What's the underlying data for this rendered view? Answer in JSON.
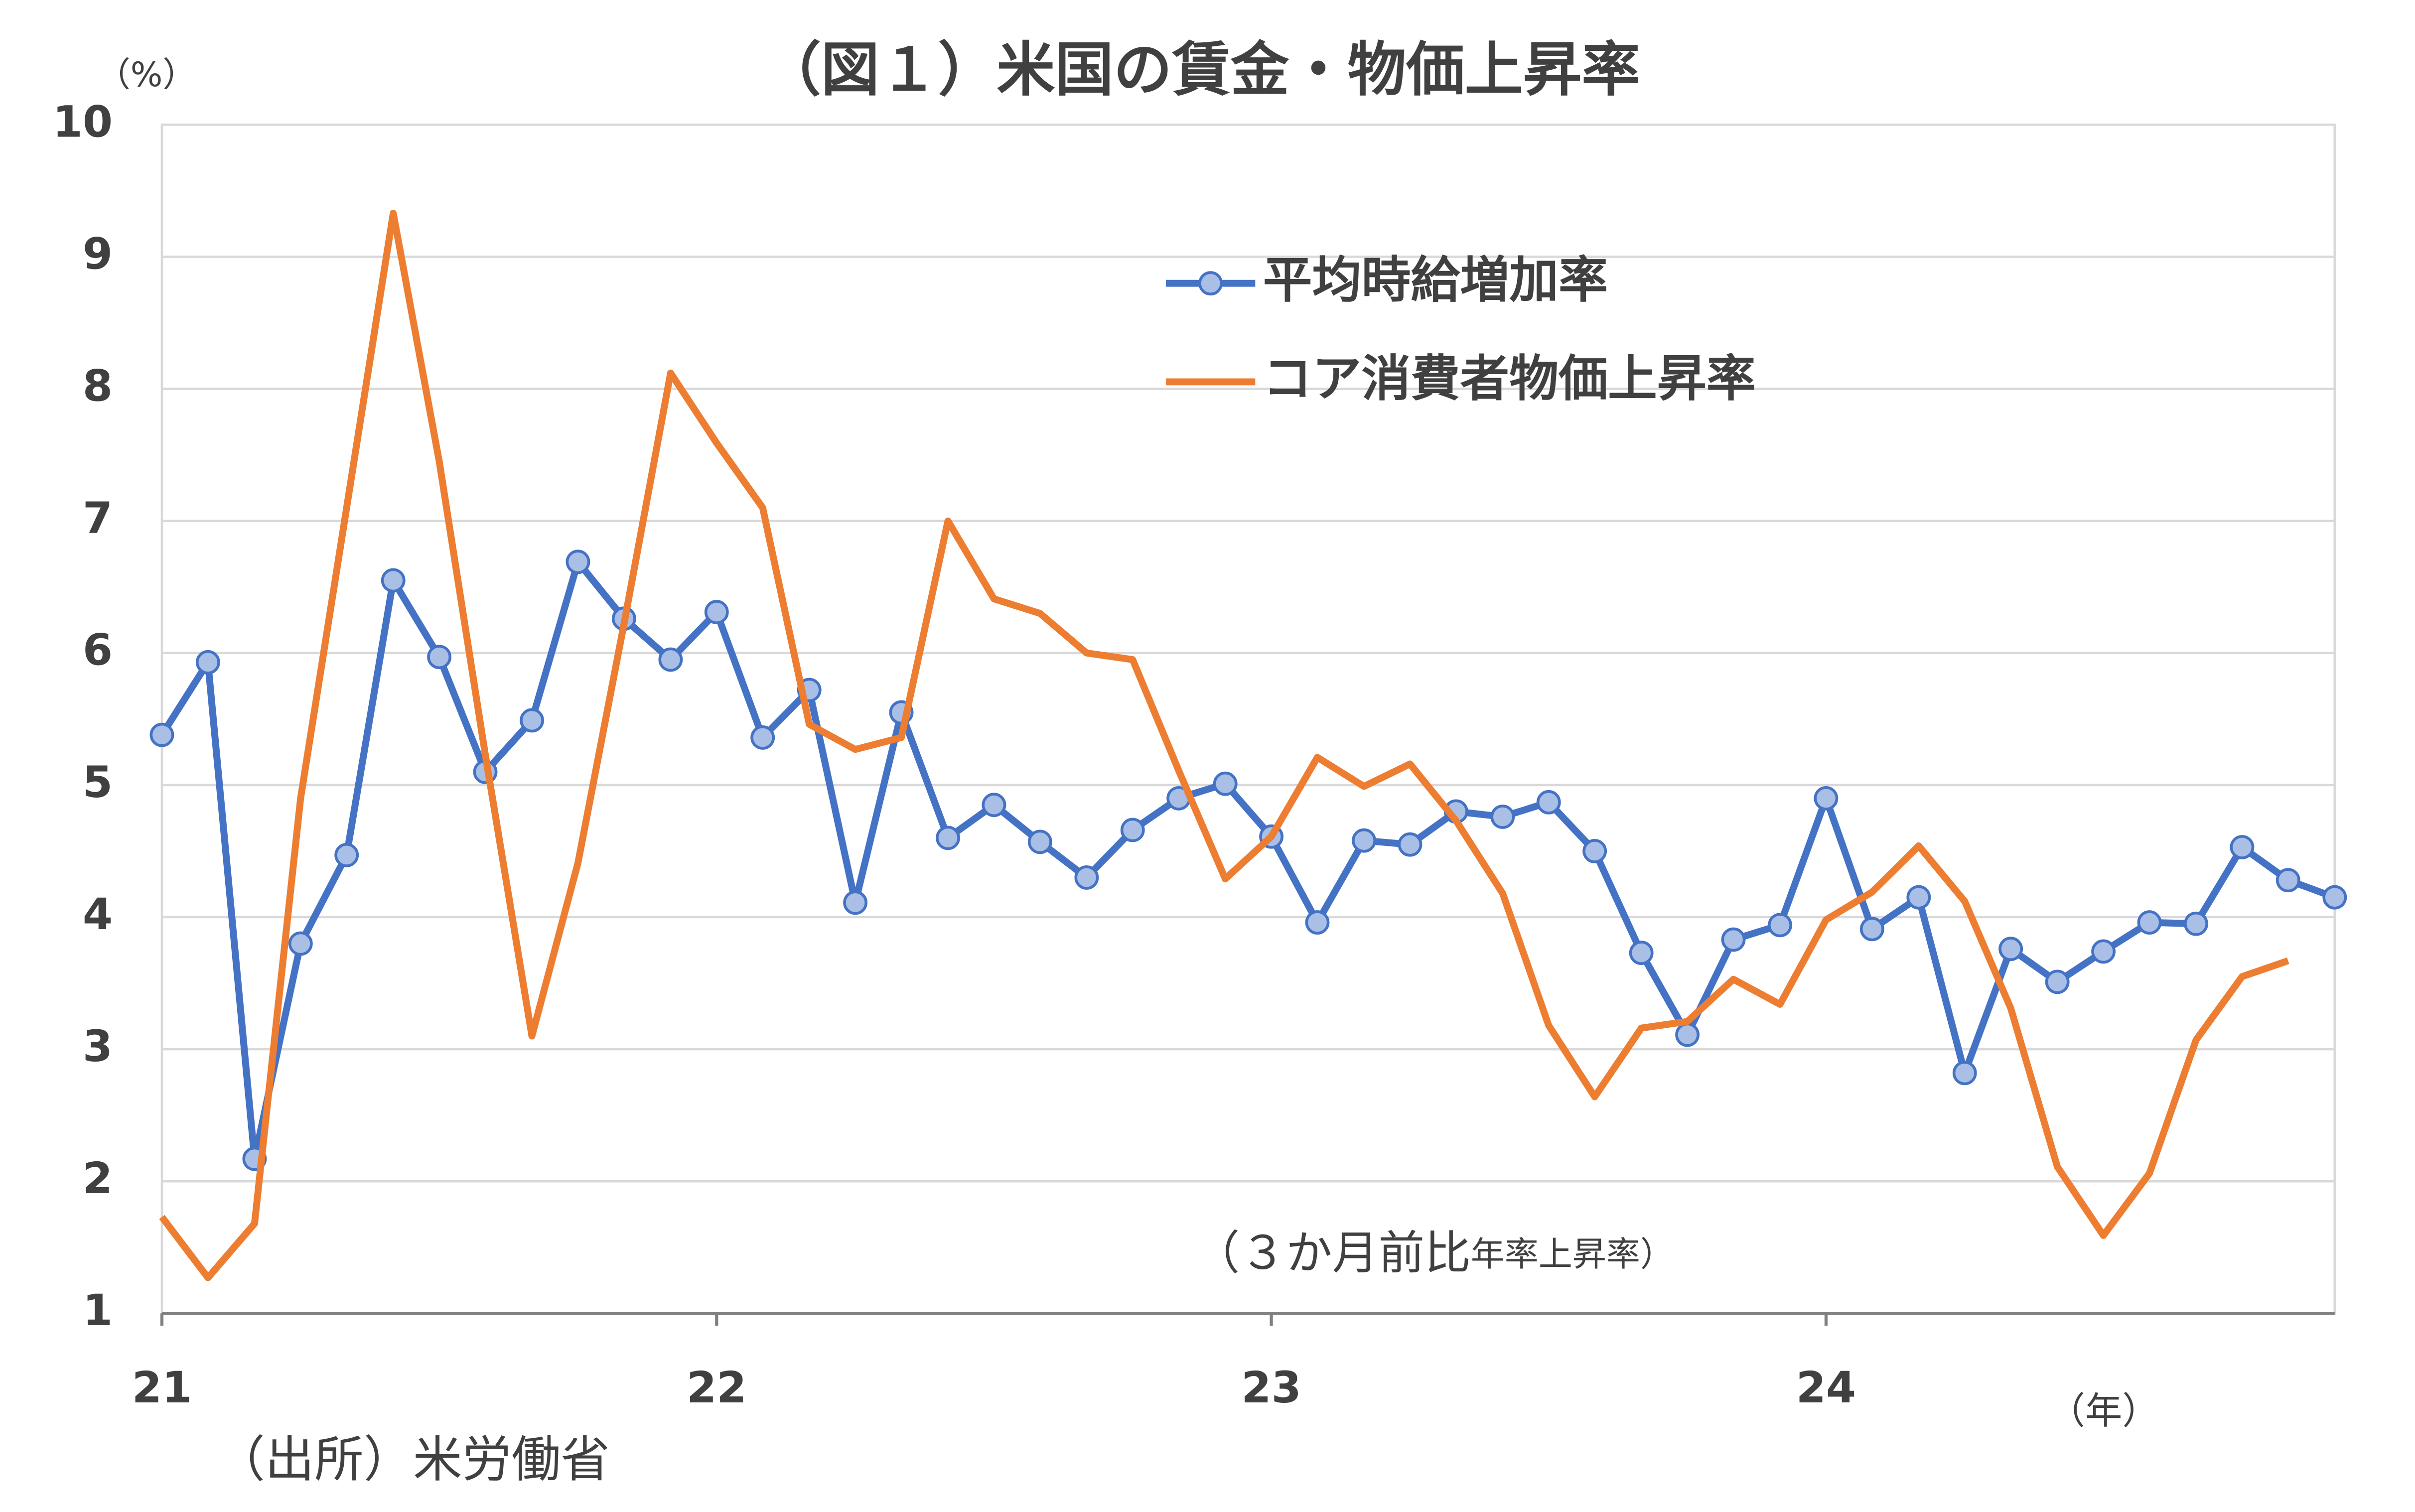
{
  "chart_data": {
    "type": "line",
    "title": "（図１）米国の賃金・物価上昇率",
    "y_unit": "（%）",
    "x_unit": "（年）",
    "annotation": [
      "（３か月前比",
      "年率上昇率）"
    ],
    "source": "（出所）米労働省",
    "x": [
      21,
      21.083,
      21.167,
      21.25,
      21.333,
      21.417,
      21.5,
      21.583,
      21.667,
      21.75,
      21.833,
      21.917,
      22,
      22.083,
      22.167,
      22.25,
      22.333,
      22.417,
      22.5,
      22.583,
      22.667,
      22.75,
      22.833,
      22.917,
      23,
      23.083,
      23.167,
      23.25,
      23.333,
      23.417,
      23.5,
      23.583,
      23.667,
      23.75,
      23.833,
      23.917,
      24,
      24.083,
      24.167,
      24.25,
      24.333,
      24.417,
      24.5,
      24.583,
      24.667,
      24.75,
      24.833,
      24.917
    ],
    "xlim": [
      21,
      24.917
    ],
    "xticks": [
      21,
      22,
      23,
      24
    ],
    "ylim": [
      1,
      10
    ],
    "yticks": [
      1,
      2,
      3,
      4,
      5,
      6,
      7,
      8,
      9,
      10
    ],
    "grid": true,
    "series": [
      {
        "name": "平均時給増加率",
        "color": "#4472c4",
        "marker_fill": "#a9bfe6",
        "markers": true,
        "values": [
          5.38,
          5.93,
          2.17,
          3.8,
          4.47,
          6.55,
          5.97,
          5.1,
          5.49,
          6.69,
          6.26,
          5.95,
          6.31,
          5.36,
          5.72,
          4.11,
          5.55,
          4.6,
          4.85,
          4.57,
          4.3,
          4.66,
          4.9,
          5.01,
          4.61,
          3.96,
          4.58,
          4.55,
          4.8,
          4.76,
          4.87,
          4.5,
          3.73,
          3.11,
          3.83,
          3.94,
          4.9,
          3.91,
          4.15,
          2.82,
          3.76,
          3.51,
          3.74,
          3.96,
          3.95,
          4.53,
          4.28,
          4.15
        ]
      },
      {
        "name": "コア消費者物価上昇率",
        "color": "#ed7d31",
        "markers": false,
        "values": [
          1.73,
          1.27,
          1.68,
          4.9,
          7.1,
          9.33,
          7.45,
          5.23,
          3.1,
          4.41,
          6.22,
          8.12,
          7.59,
          7.1,
          5.46,
          5.27,
          5.36,
          7.0,
          6.41,
          6.3,
          6.0,
          5.95,
          5.11,
          4.29,
          4.61,
          5.21,
          4.99,
          5.16,
          4.73,
          4.18,
          3.18,
          2.64,
          3.16,
          3.21,
          3.53,
          3.34,
          3.98,
          4.19,
          4.54,
          4.12,
          3.31,
          2.11,
          1.59,
          2.06,
          3.07,
          3.55,
          3.67,
          null
        ]
      }
    ]
  }
}
